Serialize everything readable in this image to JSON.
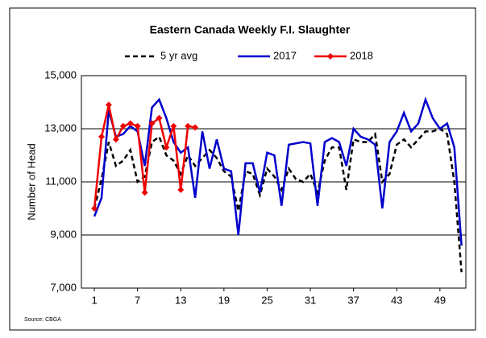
{
  "chart_data": {
    "type": "line",
    "title": "Eastern Canada Weekly F.I. Slaughter",
    "y_label": "Number of Head",
    "source": "Source: CBGA",
    "x": [
      1,
      2,
      3,
      4,
      5,
      6,
      7,
      8,
      9,
      10,
      11,
      12,
      13,
      14,
      15,
      16,
      17,
      18,
      19,
      20,
      21,
      22,
      23,
      24,
      25,
      26,
      27,
      28,
      29,
      30,
      31,
      32,
      33,
      34,
      35,
      36,
      37,
      38,
      39,
      40,
      41,
      42,
      43,
      44,
      45,
      46,
      47,
      48,
      49,
      50,
      51,
      52
    ],
    "xlim": [
      -0.8,
      52.6
    ],
    "xticks": [
      1,
      7,
      13,
      19,
      25,
      31,
      37,
      43,
      49
    ],
    "ylim": [
      7000,
      15000
    ],
    "yticks": [
      {
        "value": 7000,
        "label": "7,000"
      },
      {
        "value": 9000,
        "label": "9,000"
      },
      {
        "value": 11000,
        "label": "11,000"
      },
      {
        "value": 13000,
        "label": "13,000"
      },
      {
        "value": 15000,
        "label": "15,000"
      }
    ],
    "grid": true,
    "legend": "top",
    "series": [
      {
        "name": "5 yr avg",
        "color": "#000000",
        "dash": true,
        "values": [
          10000,
          11100,
          12500,
          11600,
          11800,
          12200,
          11000,
          11200,
          12500,
          12700,
          12000,
          11800,
          11300,
          12000,
          11600,
          11900,
          12200,
          11900,
          11400,
          11200,
          9900,
          11400,
          11300,
          10500,
          11500,
          11200,
          10700,
          11500,
          11100,
          11000,
          11300,
          10600,
          11800,
          12300,
          12300,
          10700,
          12600,
          12500,
          12500,
          12800,
          11000,
          11300,
          12400,
          12600,
          12300,
          12600,
          12900,
          12900,
          13000,
          12800,
          11000,
          7600
        ]
      },
      {
        "name": "2017",
        "color": "#0000cc",
        "values": [
          9700,
          10400,
          13700,
          12700,
          12800,
          13100,
          12900,
          11600,
          13800,
          14100,
          13400,
          12500,
          12100,
          12300,
          10400,
          12900,
          11500,
          12600,
          11500,
          11400,
          9000,
          11700,
          11700,
          10600,
          12100,
          12000,
          10100,
          12400,
          12450,
          12500,
          12450,
          10100,
          12500,
          12650,
          12500,
          11600,
          13000,
          12700,
          12600,
          12400,
          10000,
          12500,
          12900,
          13600,
          12900,
          13200,
          14100,
          13400,
          13000,
          13200,
          12300,
          8600
        ]
      },
      {
        "name": "2018",
        "color": "#ee0000",
        "markers": true,
        "values": [
          10000,
          12700,
          13900,
          12600,
          13100,
          13200,
          13100,
          10600,
          13200,
          13400,
          12300,
          13100,
          10700,
          13100,
          13050,
          null,
          null,
          null,
          null,
          null,
          null,
          null,
          null,
          null,
          null,
          null,
          null,
          null,
          null,
          null,
          null,
          null,
          null,
          null,
          null,
          null,
          null,
          null,
          null,
          null,
          null,
          null,
          null,
          null,
          null,
          null,
          null,
          null,
          null,
          null,
          null,
          null
        ]
      }
    ]
  }
}
